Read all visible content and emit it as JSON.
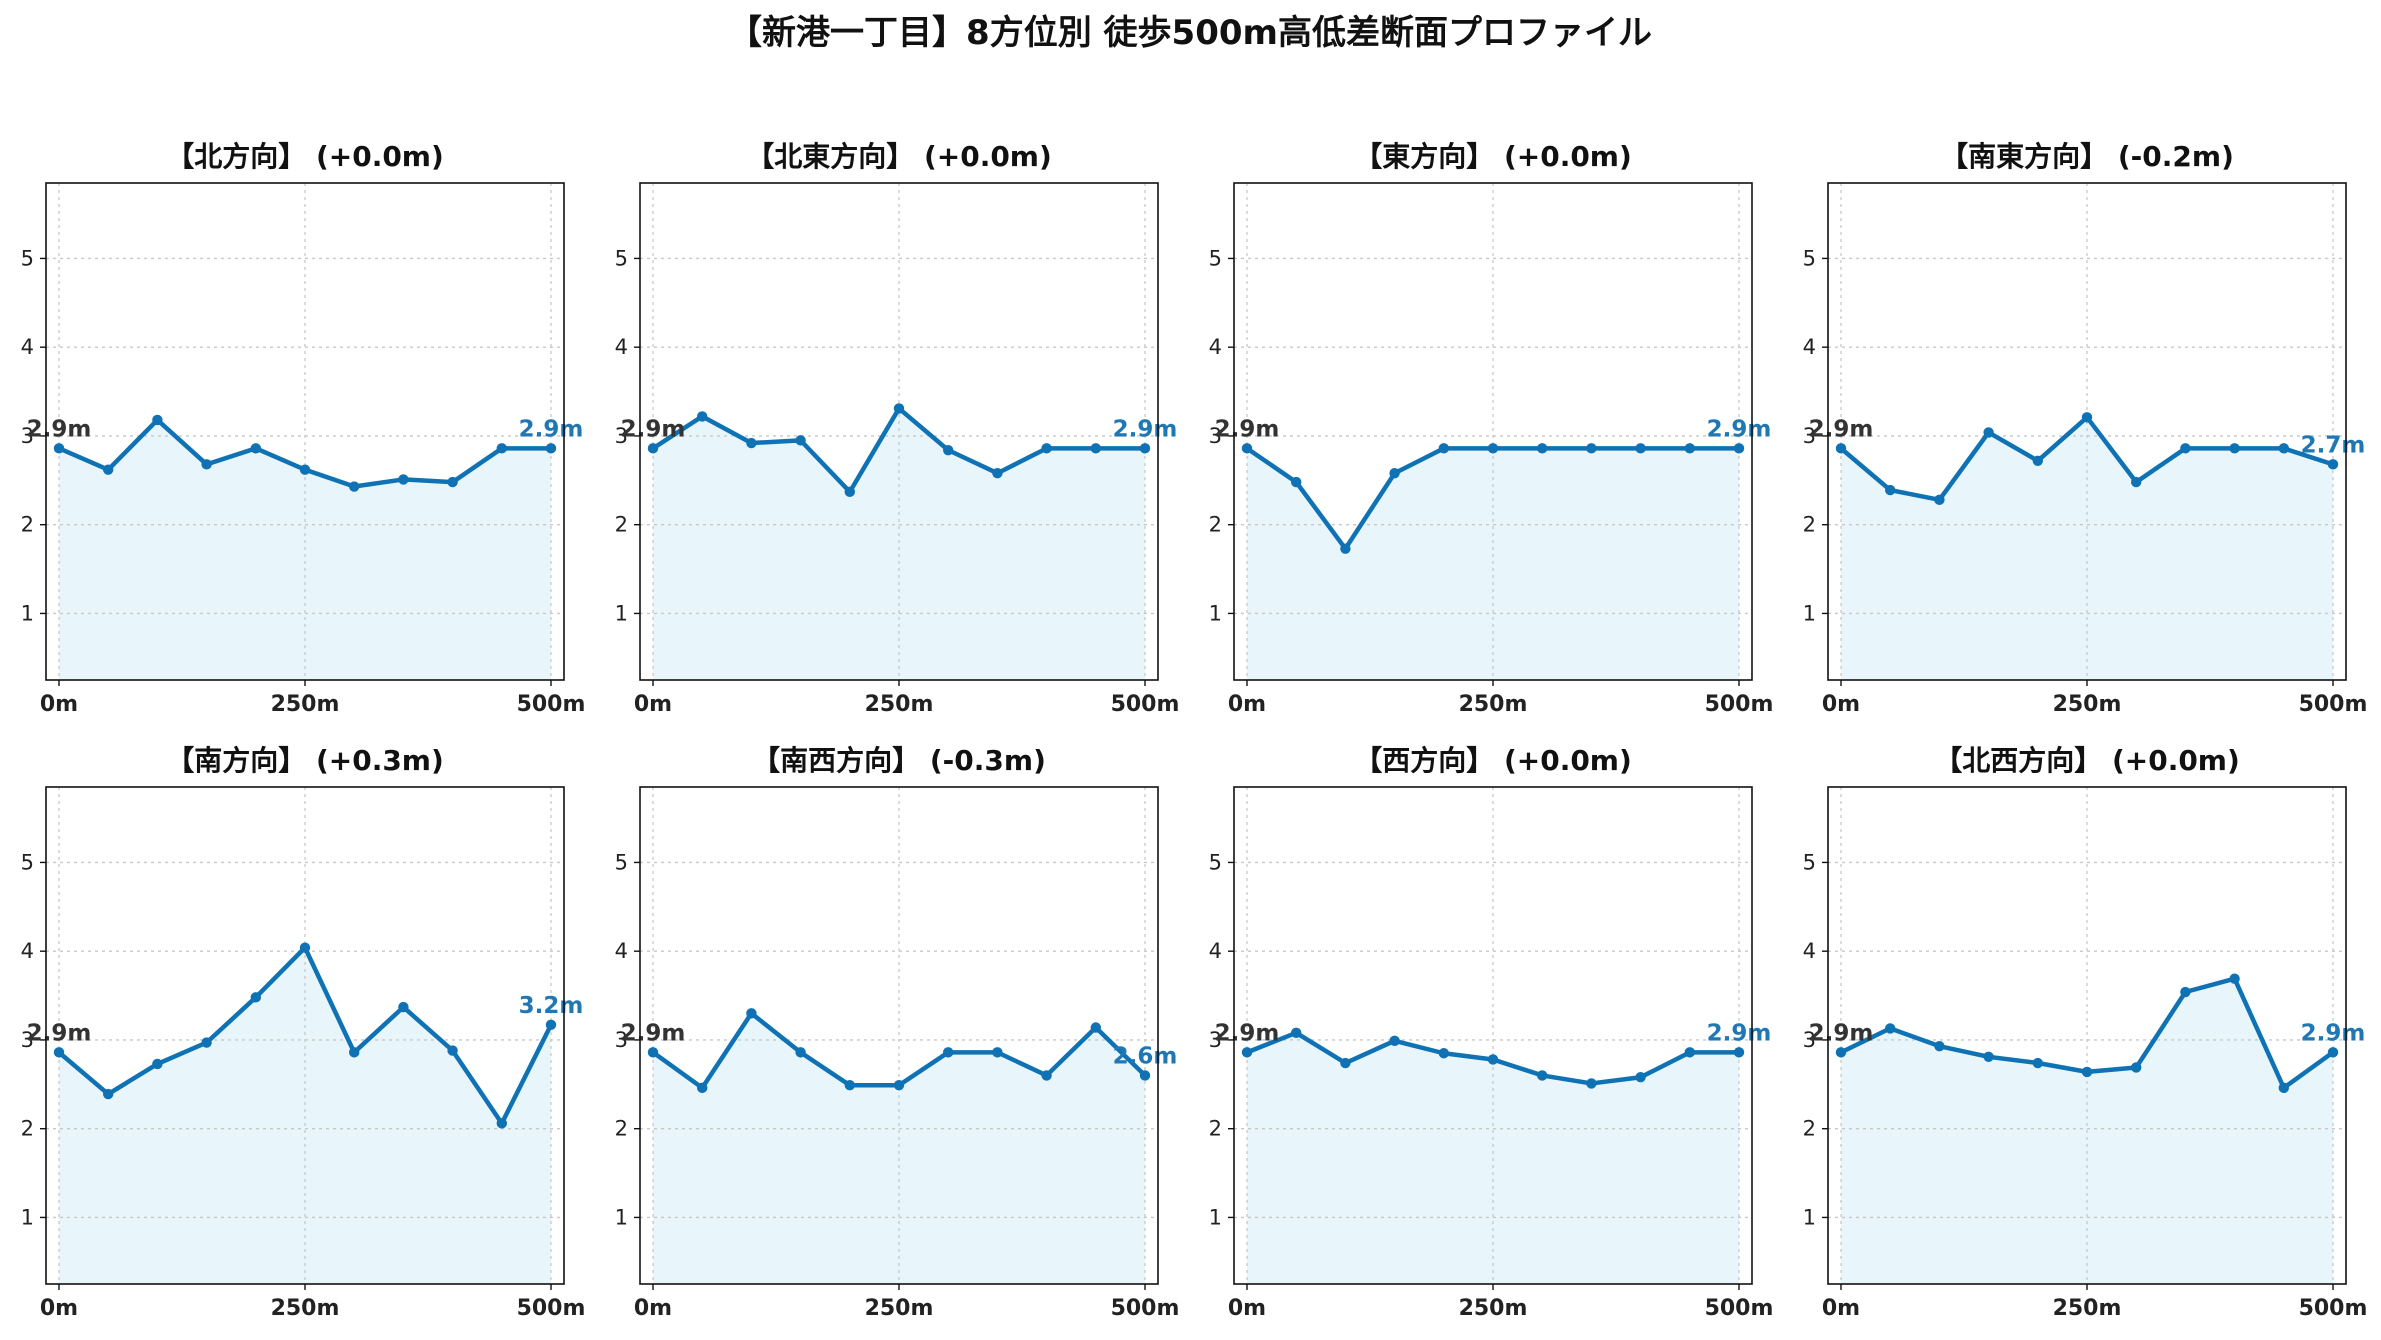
{
  "title": "【新港一丁目】8方位別 徒歩500m高低差断面プロファイル",
  "colors": {
    "line": "#0e72b5",
    "fill": "#e8f6fc",
    "end_label": "#1f77b4"
  },
  "chart_data": [
    {
      "type": "area",
      "title": "【北方向】 (+0.0m)",
      "x": [
        0,
        50,
        100,
        150,
        200,
        250,
        300,
        350,
        400,
        450,
        500
      ],
      "values": [
        2.86,
        2.62,
        3.18,
        2.68,
        2.86,
        2.62,
        2.43,
        2.51,
        2.48,
        2.86,
        2.86
      ],
      "xticks": [
        "0m",
        "250m",
        "500m"
      ],
      "yticks": [
        "1",
        "2",
        "3",
        "4",
        "5"
      ],
      "ylim": [
        0.25,
        5.85
      ],
      "grid": true,
      "start_label": "2.9m",
      "end_label": "2.9m"
    },
    {
      "type": "area",
      "title": "【北東方向】 (+0.0m)",
      "x": [
        0,
        50,
        100,
        150,
        200,
        250,
        300,
        350,
        400,
        450,
        500
      ],
      "values": [
        2.86,
        3.22,
        2.92,
        2.95,
        2.37,
        3.31,
        2.84,
        2.58,
        2.86,
        2.86,
        2.86
      ],
      "xticks": [
        "0m",
        "250m",
        "500m"
      ],
      "yticks": [
        "1",
        "2",
        "3",
        "4",
        "5"
      ],
      "ylim": [
        0.25,
        5.85
      ],
      "grid": true,
      "start_label": "2.9m",
      "end_label": "2.9m"
    },
    {
      "type": "area",
      "title": "【東方向】 (+0.0m)",
      "x": [
        0,
        50,
        100,
        150,
        200,
        250,
        300,
        350,
        400,
        450,
        500
      ],
      "values": [
        2.86,
        2.48,
        1.73,
        2.58,
        2.86,
        2.86,
        2.86,
        2.86,
        2.86,
        2.86,
        2.86
      ],
      "xticks": [
        "0m",
        "250m",
        "500m"
      ],
      "yticks": [
        "1",
        "2",
        "3",
        "4",
        "5"
      ],
      "ylim": [
        0.25,
        5.85
      ],
      "grid": true,
      "start_label": "2.9m",
      "end_label": "2.9m"
    },
    {
      "type": "area",
      "title": "【南東方向】 (-0.2m)",
      "x": [
        0,
        50,
        100,
        150,
        200,
        250,
        300,
        350,
        400,
        450,
        500
      ],
      "values": [
        2.86,
        2.39,
        2.28,
        3.04,
        2.72,
        3.21,
        2.48,
        2.86,
        2.86,
        2.86,
        2.68
      ],
      "xticks": [
        "0m",
        "250m",
        "500m"
      ],
      "yticks": [
        "1",
        "2",
        "3",
        "4",
        "5"
      ],
      "ylim": [
        0.25,
        5.85
      ],
      "grid": true,
      "start_label": "2.9m",
      "end_label": "2.7m"
    },
    {
      "type": "area",
      "title": "【南方向】 (+0.3m)",
      "x": [
        0,
        50,
        100,
        150,
        200,
        250,
        300,
        350,
        400,
        450,
        500
      ],
      "values": [
        2.86,
        2.39,
        2.73,
        2.97,
        3.48,
        4.04,
        2.86,
        3.37,
        2.88,
        2.06,
        3.17
      ],
      "xticks": [
        "0m",
        "250m",
        "500m"
      ],
      "yticks": [
        "1",
        "2",
        "3",
        "4",
        "5"
      ],
      "ylim": [
        0.25,
        5.85
      ],
      "grid": true,
      "start_label": "2.9m",
      "end_label": "3.2m"
    },
    {
      "type": "area",
      "title": "【南西方向】 (-0.3m)",
      "x": [
        0,
        50,
        100,
        150,
        200,
        250,
        300,
        350,
        400,
        450,
        500
      ],
      "values": [
        2.86,
        2.46,
        3.3,
        2.86,
        2.49,
        2.49,
        2.86,
        2.86,
        2.6,
        3.14,
        2.6
      ],
      "xticks": [
        "0m",
        "250m",
        "500m"
      ],
      "yticks": [
        "1",
        "2",
        "3",
        "4",
        "5"
      ],
      "ylim": [
        0.25,
        5.85
      ],
      "grid": true,
      "start_label": "2.9m",
      "end_label": "2.6m"
    },
    {
      "type": "area",
      "title": "【西方向】 (+0.0m)",
      "x": [
        0,
        50,
        100,
        150,
        200,
        250,
        300,
        350,
        400,
        450,
        500
      ],
      "values": [
        2.86,
        3.08,
        2.74,
        2.99,
        2.85,
        2.78,
        2.6,
        2.51,
        2.58,
        2.86,
        2.86
      ],
      "xticks": [
        "0m",
        "250m",
        "500m"
      ],
      "yticks": [
        "1",
        "2",
        "3",
        "4",
        "5"
      ],
      "ylim": [
        0.25,
        5.85
      ],
      "grid": true,
      "start_label": "2.9m",
      "end_label": "2.9m"
    },
    {
      "type": "area",
      "title": "【北西方向】 (+0.0m)",
      "x": [
        0,
        50,
        100,
        150,
        200,
        250,
        300,
        350,
        400,
        450,
        500
      ],
      "values": [
        2.86,
        3.13,
        2.93,
        2.81,
        2.74,
        2.64,
        2.69,
        3.54,
        3.69,
        2.46,
        2.86
      ],
      "xticks": [
        "0m",
        "250m",
        "500m"
      ],
      "yticks": [
        "1",
        "2",
        "3",
        "4",
        "5"
      ],
      "ylim": [
        0.25,
        5.85
      ],
      "grid": true,
      "start_label": "2.9m",
      "end_label": "2.9m"
    }
  ]
}
